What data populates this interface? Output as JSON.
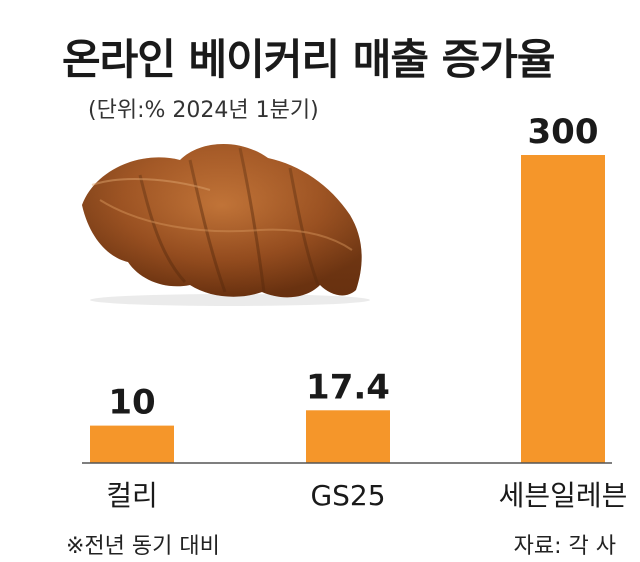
{
  "header": {
    "title": "온라인 베이커리 매출 증가율",
    "subtitle": "(단위:% 2024년 1분기)"
  },
  "footer": {
    "note": "※전년 동기 대비",
    "source": "자료: 각 사"
  },
  "colors": {
    "bar": "#f5962a",
    "axis": "#555555",
    "label": "#1a1a1a"
  },
  "chart_data": {
    "type": "bar",
    "title": "온라인 베이커리 매출 증가율",
    "subtitle": "(단위:% 2024년 1분기)",
    "categories": [
      "컬리",
      "GS25",
      "세븐일레븐"
    ],
    "values": [
      10,
      17.4,
      300
    ],
    "value_labels": [
      "10",
      "17.4",
      "300"
    ],
    "xlabel": "",
    "ylabel": "",
    "grid": false,
    "legend": "none"
  }
}
